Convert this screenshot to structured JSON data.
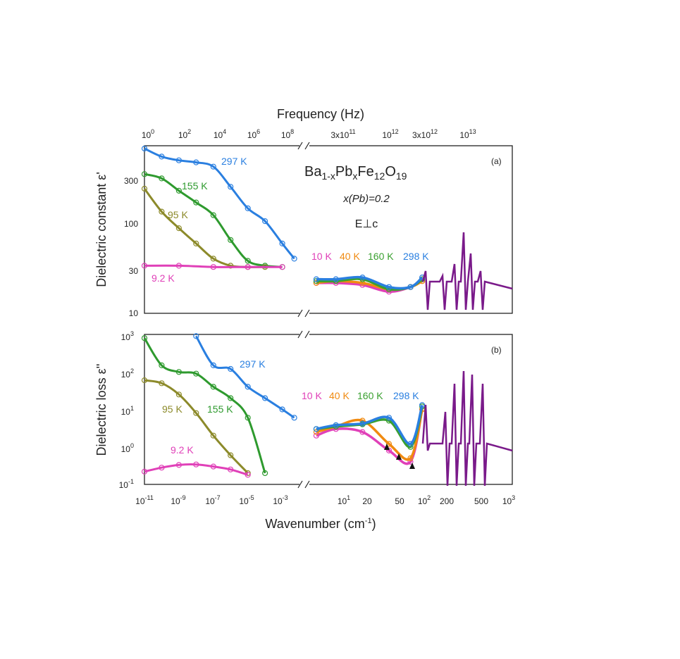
{
  "figure": {
    "top_axis_label": "Frequency (Hz)",
    "bottom_axis_label": "Wavenumber (cm",
    "bottom_axis_label_exp": "-1",
    "bottom_axis_label_close": ")",
    "top_ticks_left": [
      {
        "base": "10",
        "exp": "0"
      },
      {
        "base": "10",
        "exp": "2"
      },
      {
        "base": "10",
        "exp": "4"
      },
      {
        "base": "10",
        "exp": "6"
      },
      {
        "base": "10",
        "exp": "8"
      }
    ],
    "top_ticks_right": [
      {
        "base": "3x10",
        "exp": "11"
      },
      {
        "base": "10",
        "exp": "12"
      },
      {
        "base": "3x10",
        "exp": "12"
      },
      {
        "base": "10",
        "exp": "13"
      }
    ],
    "bottom_ticks_left": [
      {
        "base": "10",
        "exp": "-11"
      },
      {
        "base": "10",
        "exp": "-9"
      },
      {
        "base": "10",
        "exp": "-7"
      },
      {
        "base": "10",
        "exp": "-5"
      },
      {
        "base": "10",
        "exp": "-3"
      }
    ],
    "bottom_ticks_right": [
      {
        "base": "10",
        "exp": "1",
        "plain": ""
      },
      {
        "base": "",
        "exp": "",
        "plain": "20"
      },
      {
        "base": "",
        "exp": "",
        "plain": "50"
      },
      {
        "base": "10",
        "exp": "2",
        "plain": ""
      },
      {
        "base": "",
        "exp": "",
        "plain": "200"
      },
      {
        "base": "",
        "exp": "",
        "plain": "500"
      },
      {
        "base": "10",
        "exp": "3",
        "plain": ""
      }
    ],
    "colors": {
      "K297": "#2a7fe0",
      "K155": "#2e9a2e",
      "K95": "#8c8a2a",
      "K9": "#e040b8",
      "K10": "#e040b8",
      "K40": "#f08a10",
      "K160": "#3aa030",
      "K298": "#2a7fe0",
      "phonon": "#7a1a8a"
    }
  },
  "panel_a": {
    "label": "(a)",
    "ylabel": "Dielectric constant ε'",
    "yticks": [
      "10",
      "30",
      "100",
      "300"
    ],
    "compound": {
      "p1": "Ba",
      "s1": "1-x",
      "p2": "Pb",
      "s2": "x",
      "p3": "Fe",
      "s3": "12",
      "p4": "O",
      "s4": "19"
    },
    "composition": "x(Pb)=0.2",
    "field": "E⊥c",
    "temps_left": [
      "297 K",
      "155 K",
      "95 K",
      "9.2 K"
    ],
    "temps_right": [
      "10 K",
      "40 K",
      "160 K",
      "298 K"
    ]
  },
  "panel_b": {
    "label": "(b)",
    "ylabel": "Dielectric loss ε''",
    "yticks": [
      {
        "base": "10",
        "exp": "3"
      },
      {
        "base": "10",
        "exp": "2"
      },
      {
        "base": "10",
        "exp": "1"
      },
      {
        "base": "10",
        "exp": "0"
      },
      {
        "base": "10",
        "exp": "-1"
      }
    ],
    "temps_left": [
      "297 K",
      "155 K",
      "95 K",
      "9.2 K"
    ],
    "temps_right": [
      "10 K",
      "40 K",
      "160 K",
      "298 K"
    ]
  },
  "chart_data": [
    {
      "type": "line",
      "panel": "a",
      "ylabel": "Dielectric constant ε'",
      "y_scale": "log",
      "ylim": [
        10,
        600
      ],
      "left_x_scale": "log",
      "left_xlim_wavenumber_cm-1": [
        1e-11,
        0.01
      ],
      "right_x_scale": "log",
      "right_xlim_wavenumber_cm-1": [
        5,
        1000
      ],
      "series": [
        {
          "name": "297 K",
          "x": [
            1e-11,
            1e-10,
            1e-09,
            1e-08,
            1e-07,
            1e-06,
            1e-05,
            0.0001,
            0.001,
            0.005
          ],
          "y": [
            560,
            460,
            420,
            400,
            360,
            220,
            130,
            95,
            55,
            38
          ]
        },
        {
          "name": "155 K",
          "x": [
            1e-11,
            1e-10,
            1e-09,
            1e-08,
            1e-07,
            1e-06,
            1e-05,
            0.0001,
            0.001
          ],
          "y": [
            300,
            270,
            200,
            150,
            110,
            60,
            36,
            32,
            31
          ]
        },
        {
          "name": "95 K",
          "x": [
            1e-11,
            1e-10,
            1e-09,
            1e-08,
            1e-07,
            1e-06,
            1e-05,
            0.0001
          ],
          "y": [
            210,
            120,
            80,
            55,
            38,
            32,
            31,
            31
          ]
        },
        {
          "name": "9.2 K",
          "x": [
            1e-11,
            1e-09,
            1e-07,
            1e-05,
            0.001
          ],
          "y": [
            32,
            32,
            31,
            31,
            31
          ]
        },
        {
          "name": "10 K",
          "x": [
            6,
            10,
            20,
            40,
            70,
            95
          ],
          "y": [
            21,
            21,
            20,
            17,
            19,
            22
          ]
        },
        {
          "name": "40 K",
          "x": [
            6,
            10,
            20,
            40,
            70,
            95
          ],
          "y": [
            21,
            22,
            21,
            18,
            19,
            22
          ]
        },
        {
          "name": "160 K",
          "x": [
            6,
            10,
            20,
            40,
            70,
            95
          ],
          "y": [
            22,
            22,
            23,
            18,
            19,
            23
          ]
        },
        {
          "name": "298 K",
          "x": [
            6,
            10,
            20,
            40,
            70,
            95
          ],
          "y": [
            23,
            23,
            24,
            19,
            19,
            24
          ]
        }
      ]
    },
    {
      "type": "line",
      "panel": "b",
      "ylabel": "Dielectric loss ε''",
      "y_scale": "log",
      "ylim": [
        0.1,
        1000
      ],
      "left_x_scale": "log",
      "left_xlim_wavenumber_cm-1": [
        1e-11,
        0.01
      ],
      "right_x_scale": "log",
      "right_xlim_wavenumber_cm-1": [
        5,
        1000
      ],
      "series": [
        {
          "name": "297 K",
          "x": [
            1e-08,
            1e-07,
            1e-06,
            1e-05,
            0.0001,
            0.001,
            0.005
          ],
          "y": [
            900,
            150,
            120,
            40,
            20,
            10,
            6
          ]
        },
        {
          "name": "155 K",
          "x": [
            1e-11,
            1e-10,
            1e-09,
            1e-08,
            1e-07,
            1e-06,
            1e-05,
            0.0001
          ],
          "y": [
            800,
            150,
            100,
            90,
            40,
            20,
            6,
            0.2
          ]
        },
        {
          "name": "95 K",
          "x": [
            1e-11,
            1e-10,
            1e-09,
            1e-08,
            1e-07,
            1e-06,
            1e-05
          ],
          "y": [
            60,
            50,
            25,
            8,
            2,
            0.6,
            0.2
          ]
        },
        {
          "name": "9.2 K",
          "x": [
            1e-11,
            1e-10,
            1e-09,
            1e-08,
            1e-07,
            1e-06,
            1e-05
          ],
          "y": [
            0.22,
            0.28,
            0.33,
            0.34,
            0.3,
            0.25,
            0.18
          ]
        },
        {
          "name": "10 K",
          "x": [
            6,
            10,
            20,
            40,
            70,
            95
          ],
          "y": [
            2,
            3,
            2.5,
            0.8,
            0.4,
            10
          ]
        },
        {
          "name": "40 K",
          "x": [
            6,
            10,
            20,
            40,
            70,
            95
          ],
          "y": [
            2.5,
            3.5,
            5,
            1.2,
            0.5,
            10
          ]
        },
        {
          "name": "160 K",
          "x": [
            6,
            10,
            20,
            40,
            70,
            95
          ],
          "y": [
            3,
            3.5,
            4,
            5,
            1,
            12
          ]
        },
        {
          "name": "298 K",
          "x": [
            6,
            10,
            20,
            40,
            70,
            95
          ],
          "y": [
            3,
            3.8,
            4.2,
            6,
            1.2,
            13
          ]
        }
      ]
    }
  ]
}
